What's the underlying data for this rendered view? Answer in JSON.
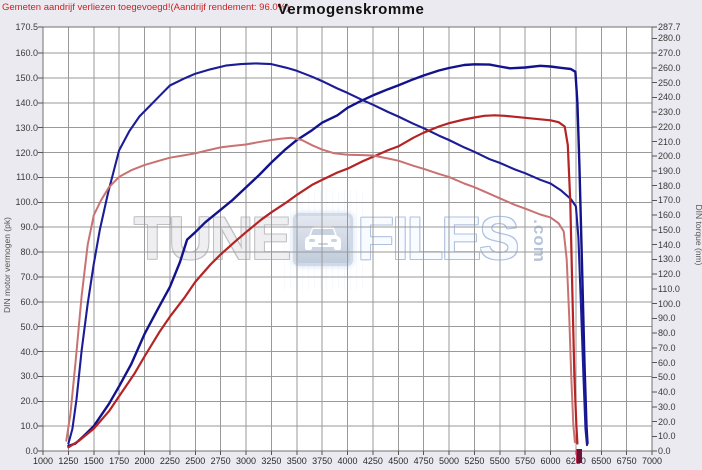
{
  "header": {
    "note": "Gemeten aandrijf verliezen toegevoegd!(Aandrijf rendement: 96.0%)",
    "title": "Vermogenskromme"
  },
  "watermark": {
    "word1": "TUNE",
    "word2": "FILES",
    "suffix": ".com",
    "chip_icon": "car-icon"
  },
  "colors": {
    "background": "#ebeaf0",
    "plot_background": "#ffffff",
    "grid": "#9a9a9a",
    "plot_border": "#707070",
    "tuned_line": "#12128c",
    "original_power_line": "#b42424",
    "original_torque_line": "#c97272",
    "header_note": "#cc2222",
    "rpm_marker": "#6b1236"
  },
  "chart_data": {
    "type": "line",
    "title": "Vermogenskromme",
    "x_axis": {
      "unit": "rpm",
      "min": 1000,
      "max": 7000,
      "tick_step": 250,
      "ticks": [
        1000,
        1250,
        1500,
        1750,
        2000,
        2250,
        2500,
        2750,
        3000,
        3250,
        3500,
        3750,
        4000,
        4250,
        4500,
        4750,
        5000,
        5250,
        5500,
        5750,
        6000,
        6250,
        6500,
        6750,
        7000
      ]
    },
    "y_left": {
      "label": "DIN motor vermogen (pk)",
      "min": 0,
      "max": 170.5,
      "ticks": [
        170.5,
        160.0,
        150.0,
        140.0,
        130.0,
        120.0,
        110.0,
        100.0,
        90.0,
        80.0,
        70.0,
        60.0,
        50.0,
        40.0,
        30.0,
        20.0,
        10.0,
        0.0
      ]
    },
    "y_right": {
      "label": "DIN torque (nm)",
      "min": 0,
      "max": 287.7,
      "ticks": [
        287.7,
        280.0,
        270.0,
        260.0,
        250.0,
        240.0,
        230.0,
        220.0,
        210.0,
        200.0,
        190.0,
        180.0,
        170.0,
        160.0,
        150.0,
        140.0,
        130.0,
        120.0,
        110.0,
        100.0,
        90.0,
        80.0,
        70.0,
        60.0,
        50.0,
        40.0,
        30.0,
        20.0,
        10.0,
        0.0
      ]
    },
    "grid": true,
    "legend": "none",
    "rpm_limit_marker": 6280,
    "series": [
      {
        "name": "tuned-power-pk",
        "axis": "left",
        "color": "#12128c",
        "width": 2.4,
        "points": [
          [
            1250,
            2
          ],
          [
            1320,
            3
          ],
          [
            1400,
            6
          ],
          [
            1500,
            10
          ],
          [
            1650,
            19
          ],
          [
            1750,
            26
          ],
          [
            1870,
            35
          ],
          [
            2000,
            47
          ],
          [
            2130,
            57
          ],
          [
            2250,
            66
          ],
          [
            2350,
            76
          ],
          [
            2420,
            85
          ],
          [
            2500,
            88
          ],
          [
            2600,
            92
          ],
          [
            2750,
            97
          ],
          [
            2870,
            101
          ],
          [
            3000,
            106
          ],
          [
            3130,
            111
          ],
          [
            3250,
            116
          ],
          [
            3380,
            121
          ],
          [
            3500,
            125
          ],
          [
            3650,
            129
          ],
          [
            3750,
            132
          ],
          [
            3900,
            135
          ],
          [
            4000,
            138
          ],
          [
            4120,
            140.5
          ],
          [
            4250,
            143
          ],
          [
            4400,
            145.5
          ],
          [
            4500,
            147
          ],
          [
            4650,
            149.5
          ],
          [
            4750,
            151
          ],
          [
            4900,
            153
          ],
          [
            5000,
            154
          ],
          [
            5150,
            155.2
          ],
          [
            5250,
            155.5
          ],
          [
            5400,
            155.4
          ],
          [
            5500,
            154.6
          ],
          [
            5600,
            153.9
          ],
          [
            5750,
            154.2
          ],
          [
            5900,
            154.9
          ],
          [
            6000,
            154.6
          ],
          [
            6100,
            154.1
          ],
          [
            6200,
            153.6
          ],
          [
            6245,
            152.5
          ],
          [
            6265,
            140
          ],
          [
            6285,
            115
          ],
          [
            6310,
            75
          ],
          [
            6335,
            35
          ],
          [
            6355,
            10
          ],
          [
            6365,
            3
          ]
        ]
      },
      {
        "name": "tuned-torque-nm",
        "axis": "right",
        "color": "#1c1c96",
        "width": 2.1,
        "points": [
          [
            1250,
            5
          ],
          [
            1290,
            15
          ],
          [
            1330,
            35
          ],
          [
            1380,
            68
          ],
          [
            1440,
            100
          ],
          [
            1500,
            127
          ],
          [
            1560,
            150
          ],
          [
            1640,
            175
          ],
          [
            1750,
            204
          ],
          [
            1850,
            217
          ],
          [
            1950,
            227
          ],
          [
            2050,
            234
          ],
          [
            2150,
            241
          ],
          [
            2250,
            248
          ],
          [
            2400,
            253
          ],
          [
            2500,
            256
          ],
          [
            2650,
            259
          ],
          [
            2800,
            261.5
          ],
          [
            2950,
            262.5
          ],
          [
            3100,
            263
          ],
          [
            3250,
            262.5
          ],
          [
            3400,
            260
          ],
          [
            3500,
            258
          ],
          [
            3650,
            254
          ],
          [
            3750,
            251
          ],
          [
            3900,
            246
          ],
          [
            4000,
            243
          ],
          [
            4150,
            238
          ],
          [
            4250,
            235
          ],
          [
            4400,
            230
          ],
          [
            4500,
            227
          ],
          [
            4650,
            222
          ],
          [
            4750,
            219
          ],
          [
            4900,
            214
          ],
          [
            5000,
            211
          ],
          [
            5150,
            206
          ],
          [
            5250,
            203
          ],
          [
            5400,
            198
          ],
          [
            5500,
            195.5
          ],
          [
            5650,
            191
          ],
          [
            5750,
            188.5
          ],
          [
            5900,
            184
          ],
          [
            6000,
            181.5
          ],
          [
            6100,
            177
          ],
          [
            6200,
            171
          ],
          [
            6250,
            166
          ],
          [
            6275,
            145
          ],
          [
            6300,
            100
          ],
          [
            6325,
            50
          ],
          [
            6345,
            15
          ],
          [
            6360,
            4
          ]
        ]
      },
      {
        "name": "original-power-pk",
        "axis": "left",
        "color": "#b42424",
        "width": 2.2,
        "points": [
          [
            1250,
            1.5
          ],
          [
            1350,
            4
          ],
          [
            1500,
            9
          ],
          [
            1650,
            16
          ],
          [
            1750,
            22
          ],
          [
            1900,
            31
          ],
          [
            2000,
            38
          ],
          [
            2150,
            48
          ],
          [
            2250,
            54
          ],
          [
            2400,
            62
          ],
          [
            2500,
            68
          ],
          [
            2650,
            75
          ],
          [
            2750,
            79
          ],
          [
            2900,
            84.5
          ],
          [
            3000,
            88
          ],
          [
            3150,
            93
          ],
          [
            3250,
            96
          ],
          [
            3400,
            100
          ],
          [
            3500,
            103
          ],
          [
            3650,
            107
          ],
          [
            3750,
            109
          ],
          [
            3900,
            112
          ],
          [
            4000,
            113.5
          ],
          [
            4150,
            116.5
          ],
          [
            4290,
            119
          ],
          [
            4400,
            121
          ],
          [
            4500,
            122.5
          ],
          [
            4650,
            126
          ],
          [
            4750,
            128
          ],
          [
            4900,
            130.5
          ],
          [
            5000,
            131.8
          ],
          [
            5150,
            133.3
          ],
          [
            5250,
            134.1
          ],
          [
            5350,
            134.8
          ],
          [
            5450,
            135
          ],
          [
            5550,
            134.8
          ],
          [
            5650,
            134.4
          ],
          [
            5750,
            134
          ],
          [
            5900,
            133.4
          ],
          [
            6000,
            133
          ],
          [
            6080,
            132.2
          ],
          [
            6140,
            130.5
          ],
          [
            6170,
            123
          ],
          [
            6195,
            100
          ],
          [
            6215,
            65
          ],
          [
            6235,
            30
          ],
          [
            6255,
            10
          ],
          [
            6265,
            3
          ]
        ]
      },
      {
        "name": "original-torque-nm",
        "axis": "right",
        "color": "#c97272",
        "width": 2.0,
        "points": [
          [
            1230,
            7
          ],
          [
            1270,
            25
          ],
          [
            1320,
            60
          ],
          [
            1380,
            105
          ],
          [
            1440,
            140
          ],
          [
            1500,
            160
          ],
          [
            1570,
            170
          ],
          [
            1650,
            179
          ],
          [
            1750,
            186
          ],
          [
            1870,
            190.5
          ],
          [
            2000,
            194
          ],
          [
            2120,
            196.5
          ],
          [
            2250,
            199
          ],
          [
            2380,
            200.5
          ],
          [
            2500,
            202
          ],
          [
            2620,
            204
          ],
          [
            2750,
            206
          ],
          [
            2870,
            207
          ],
          [
            3000,
            208
          ],
          [
            3120,
            209.5
          ],
          [
            3250,
            211
          ],
          [
            3350,
            212
          ],
          [
            3450,
            212.5
          ],
          [
            3550,
            211
          ],
          [
            3650,
            207.5
          ],
          [
            3750,
            204.5
          ],
          [
            3870,
            202
          ],
          [
            4000,
            201
          ],
          [
            4150,
            200.8
          ],
          [
            4250,
            200.5
          ],
          [
            4400,
            198.5
          ],
          [
            4500,
            197
          ],
          [
            4650,
            193.5
          ],
          [
            4750,
            191.5
          ],
          [
            4900,
            188
          ],
          [
            5000,
            186
          ],
          [
            5150,
            181.5
          ],
          [
            5250,
            179
          ],
          [
            5400,
            174.5
          ],
          [
            5500,
            171.5
          ],
          [
            5650,
            167
          ],
          [
            5750,
            164.5
          ],
          [
            5900,
            160.5
          ],
          [
            6000,
            158.5
          ],
          [
            6080,
            154.5
          ],
          [
            6130,
            149
          ],
          [
            6160,
            130
          ],
          [
            6185,
            90
          ],
          [
            6205,
            50
          ],
          [
            6225,
            18
          ],
          [
            6240,
            6
          ]
        ]
      }
    ]
  }
}
